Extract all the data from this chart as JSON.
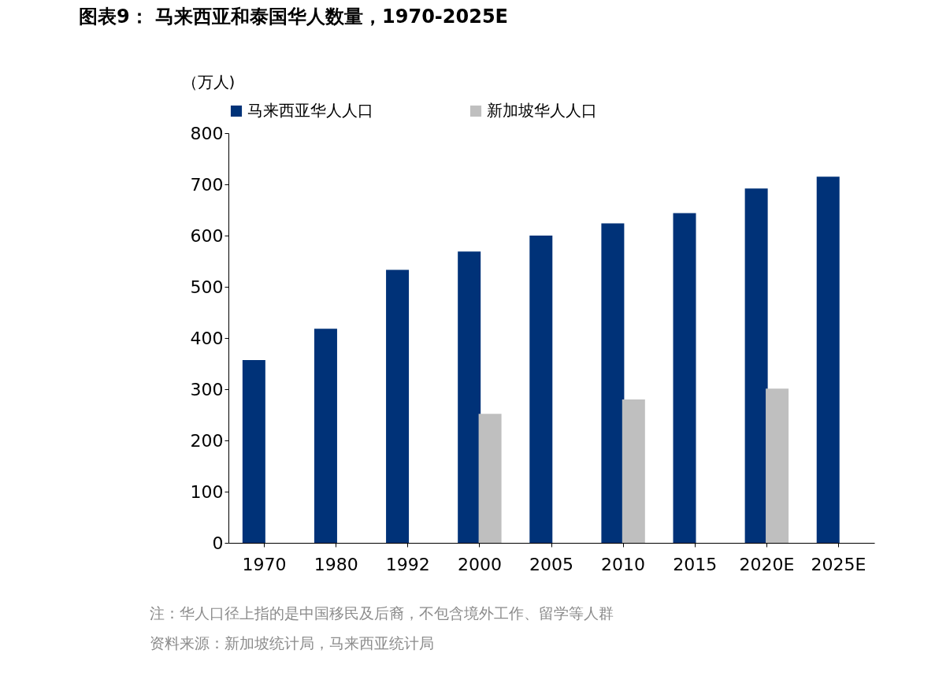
{
  "chart_data": {
    "type": "bar",
    "title": "图表9： 马来西亚和泰国华人数量，1970-2025E",
    "ylabel": "（万人)",
    "categories": [
      "1970",
      "1980",
      "1992",
      "2000",
      "2005",
      "2010",
      "2015",
      "2020E",
      "2025E"
    ],
    "series": [
      {
        "name": "马来西亚华人人口",
        "color": "#003278",
        "values": [
          357,
          418,
          533,
          569,
          600,
          624,
          644,
          692,
          715
        ]
      },
      {
        "name": "新加坡华人人口",
        "color": "#bfbfbf",
        "values": [
          null,
          null,
          null,
          252,
          null,
          280,
          null,
          301,
          null
        ]
      }
    ],
    "ylim": [
      0,
      800
    ],
    "yticks": [
      0,
      100,
      200,
      300,
      400,
      500,
      600,
      700,
      800
    ],
    "grid": false,
    "legend": "top",
    "annotations": [
      "注：华人口径上指的是中国移民及后裔，不包含境外工作、留学等人群",
      "资料来源：新加坡统计局，马来西亚统计局"
    ]
  }
}
